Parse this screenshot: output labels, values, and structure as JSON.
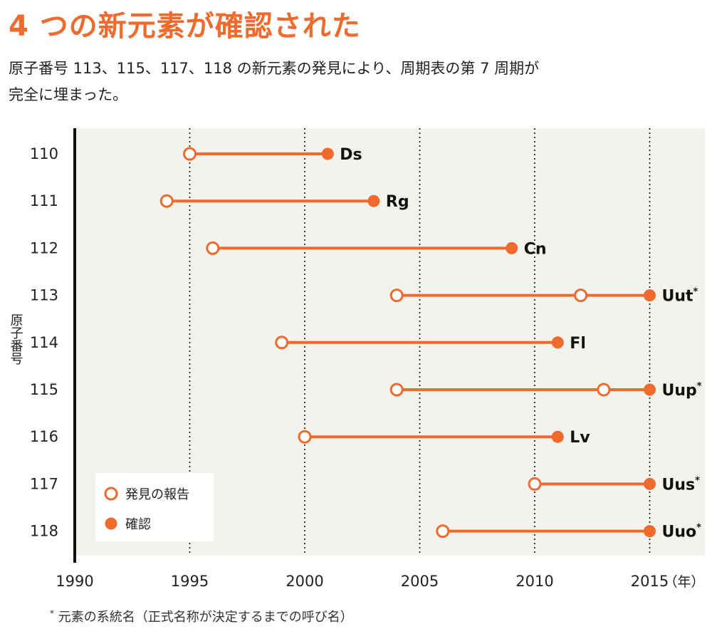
{
  "header": {
    "title": "4 つの新元素が確認された",
    "subtitle_line1": "原子番号 113、115、117、118 の新元素の発見により、周期表の第 7 周期が",
    "subtitle_line2": "完全に埋まった。"
  },
  "footnote": {
    "mark": "*",
    "text": "元素の系統名（正式名称が決定するまでの呼び名）"
  },
  "chart_data": {
    "type": "dumbbell",
    "ylabel": "原子番号",
    "xlabel": "（年）",
    "xlim": [
      1990,
      2016
    ],
    "xticks": [
      1990,
      1995,
      2000,
      2005,
      2010,
      2015
    ],
    "gridlines_at": [
      1995,
      2000,
      2005,
      2010,
      2015
    ],
    "grid_style": "dotted-vertical",
    "legend_position": "bottom-left",
    "legend": [
      {
        "key": "report",
        "label": "発見の報告",
        "marker": "open-circle"
      },
      {
        "key": "confirm",
        "label": "確認",
        "marker": "filled-circle"
      }
    ],
    "colors": {
      "accent": "#ee6a2d",
      "plot_background": "#f4f2ec",
      "axis": "#111111",
      "text": "#222222"
    },
    "rows": [
      {
        "z": "110",
        "symbol": "Ds",
        "asterisk": false,
        "reports": [
          1995
        ],
        "confirm": 2001
      },
      {
        "z": "111",
        "symbol": "Rg",
        "asterisk": false,
        "reports": [
          1994
        ],
        "confirm": 2003
      },
      {
        "z": "112",
        "symbol": "Cn",
        "asterisk": false,
        "reports": [
          1996
        ],
        "confirm": 2009
      },
      {
        "z": "113",
        "symbol": "Uut",
        "asterisk": true,
        "reports": [
          2004,
          2012
        ],
        "confirm": 2015
      },
      {
        "z": "114",
        "symbol": "Fl",
        "asterisk": false,
        "reports": [
          1999
        ],
        "confirm": 2011
      },
      {
        "z": "115",
        "symbol": "Uup",
        "asterisk": true,
        "reports": [
          2004,
          2013
        ],
        "confirm": 2015
      },
      {
        "z": "116",
        "symbol": "Lv",
        "asterisk": false,
        "reports": [
          2000
        ],
        "confirm": 2011
      },
      {
        "z": "117",
        "symbol": "Uus",
        "asterisk": true,
        "reports": [
          2010
        ],
        "confirm": 2015
      },
      {
        "z": "118",
        "symbol": "Uuo",
        "asterisk": true,
        "reports": [
          2006
        ],
        "confirm": 2015
      }
    ]
  }
}
